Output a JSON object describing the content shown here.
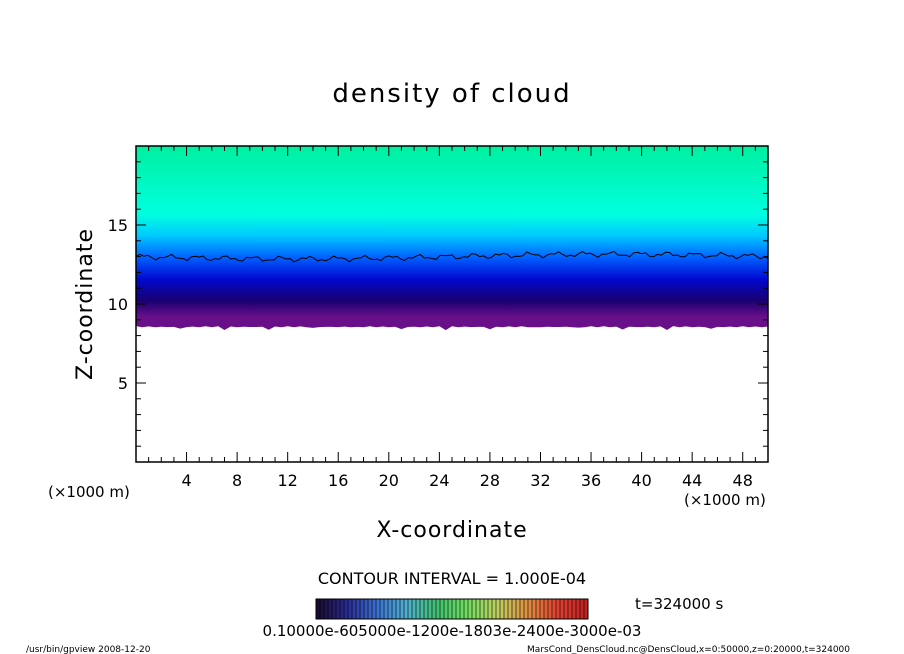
{
  "chart_data": {
    "type": "heatmap",
    "title": "density of cloud",
    "xlabel": "X-coordinate",
    "ylabel": "Z-coordinate",
    "x_unit": "(×1000 m)",
    "z_unit": "(×1000 m)",
    "xlim": [
      0,
      50
    ],
    "ylim": [
      0,
      20
    ],
    "x_ticks": [
      4,
      8,
      12,
      16,
      20,
      24,
      28,
      32,
      36,
      40,
      44,
      48
    ],
    "y_ticks": [
      5,
      10,
      15
    ],
    "contour_interval_text": "CONTOUR INTERVAL = 1.000E-04",
    "time_text": "t=324000 s",
    "colorbar_labels_text": "0.10000e-605000e-1200e-1803e-2400e-3000e-03",
    "cloud_base_z": 8.6,
    "contour_line_z": 13.0,
    "palette": [
      "#6a0f8a",
      "#1a0070",
      "#0008d0",
      "#0060ff",
      "#00c8ff",
      "#00ffe0",
      "#00f0a0"
    ],
    "colorbar_palette": [
      "#1a0a2a",
      "#2a2a90",
      "#3a70d0",
      "#50b0d0",
      "#40c070",
      "#70e060",
      "#c0d060",
      "#e09040",
      "#e04030",
      "#c02020"
    ]
  },
  "footer": {
    "left": "/usr/bin/gpview   2008-12-20",
    "right": "MarsCond_DensCloud.nc@DensCloud,x=0:50000,z=0:20000,t=324000"
  }
}
